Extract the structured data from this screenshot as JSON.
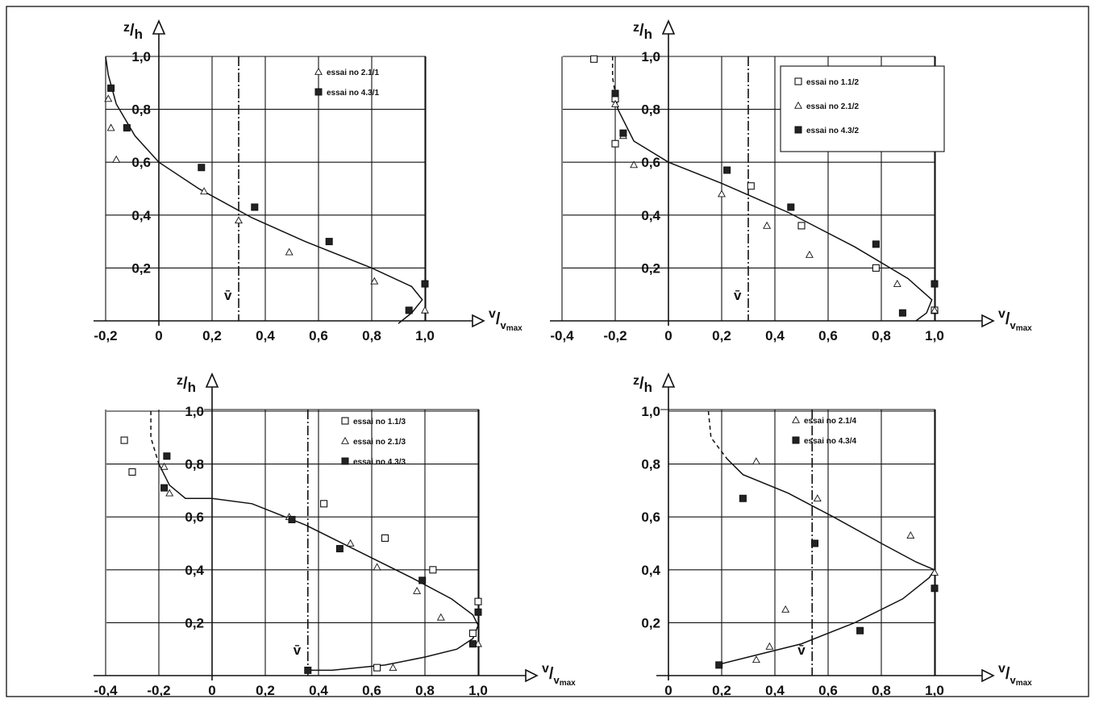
{
  "chart_data": [
    {
      "type": "scatter",
      "xlabel": "v/v_max",
      "ylabel": "z/h",
      "xlim": [
        -0.2,
        1.0
      ],
      "ylim": [
        0,
        1.0
      ],
      "x_ticks": [
        "-0,2",
        "0",
        "0,2",
        "0,4",
        "0,6",
        "0,8",
        "1,0"
      ],
      "y_ticks": [
        "0,2",
        "0,4",
        "0,6",
        "0,8",
        "1,0"
      ],
      "mean_label": "v̄",
      "mean_x": 0.3,
      "series": [
        {
          "name": "essai no 2.1/1",
          "marker": "triangle",
          "points": [
            [
              -0.19,
              0.84
            ],
            [
              -0.18,
              0.73
            ],
            [
              -0.16,
              0.61
            ],
            [
              0.17,
              0.49
            ],
            [
              0.3,
              0.38
            ],
            [
              0.49,
              0.26
            ],
            [
              0.81,
              0.15
            ],
            [
              1.0,
              0.04
            ]
          ]
        },
        {
          "name": "essai no 4.3/1",
          "marker": "filled-square",
          "points": [
            [
              -0.18,
              0.88
            ],
            [
              -0.12,
              0.73
            ],
            [
              0.16,
              0.58
            ],
            [
              0.36,
              0.43
            ],
            [
              0.64,
              0.3
            ],
            [
              0.94,
              0.04
            ],
            [
              1.0,
              0.14
            ]
          ]
        }
      ],
      "fit_curve": [
        [
          -0.2,
          1.0
        ],
        [
          -0.19,
          0.93
        ],
        [
          -0.16,
          0.82
        ],
        [
          -0.09,
          0.7
        ],
        [
          0.0,
          0.6
        ],
        [
          0.15,
          0.5
        ],
        [
          0.35,
          0.39
        ],
        [
          0.55,
          0.3
        ],
        [
          0.8,
          0.2
        ],
        [
          0.95,
          0.13
        ],
        [
          0.99,
          0.08
        ],
        [
          0.95,
          0.03
        ],
        [
          0.9,
          -0.01
        ]
      ],
      "fit_dashed": [],
      "legend": {
        "position": "top-right",
        "box": false
      }
    },
    {
      "type": "scatter",
      "xlabel": "v/v_max",
      "ylabel": "z/h",
      "xlim": [
        -0.4,
        1.0
      ],
      "ylim": [
        0,
        1.0
      ],
      "x_ticks": [
        "-0,4",
        "-0,2",
        "0",
        "0,2",
        "0,4",
        "0,6",
        "0,8",
        "1,0"
      ],
      "y_ticks": [
        "0,2",
        "0,4",
        "0,6",
        "0,8",
        "1,0"
      ],
      "mean_label": "v̄",
      "mean_x": 0.3,
      "series": [
        {
          "name": "essai no 1.1/2",
          "marker": "open-square",
          "points": [
            [
              -0.28,
              0.99
            ],
            [
              -0.2,
              0.84
            ],
            [
              -0.2,
              0.67
            ],
            [
              0.31,
              0.51
            ],
            [
              0.5,
              0.36
            ],
            [
              0.78,
              0.2
            ],
            [
              1.0,
              0.04
            ]
          ]
        },
        {
          "name": "essai no 2.1/2",
          "marker": "triangle",
          "points": [
            [
              -0.2,
              0.82
            ],
            [
              -0.17,
              0.7
            ],
            [
              -0.13,
              0.59
            ],
            [
              0.2,
              0.48
            ],
            [
              0.37,
              0.36
            ],
            [
              0.53,
              0.25
            ],
            [
              0.86,
              0.14
            ],
            [
              1.0,
              0.04
            ]
          ]
        },
        {
          "name": "essai no 4.3/2",
          "marker": "filled-square",
          "points": [
            [
              -0.2,
              0.86
            ],
            [
              -0.17,
              0.71
            ],
            [
              0.22,
              0.57
            ],
            [
              0.46,
              0.43
            ],
            [
              0.78,
              0.29
            ],
            [
              0.88,
              0.03
            ],
            [
              1.0,
              0.14
            ]
          ]
        }
      ],
      "fit_curve": [
        [
          -0.19,
          0.8
        ],
        [
          -0.13,
          0.68
        ],
        [
          0.0,
          0.6
        ],
        [
          0.2,
          0.52
        ],
        [
          0.45,
          0.41
        ],
        [
          0.7,
          0.28
        ],
        [
          0.9,
          0.16
        ],
        [
          0.99,
          0.08
        ],
        [
          0.97,
          0.03
        ],
        [
          0.93,
          0.0
        ]
      ],
      "fit_dashed": [
        [
          -0.21,
          1.0
        ],
        [
          -0.21,
          0.92
        ],
        [
          -0.19,
          0.8
        ]
      ],
      "legend": {
        "position": "top-right",
        "box": true
      }
    },
    {
      "type": "scatter",
      "xlabel": "v/v_max",
      "ylabel": "z/h",
      "xlim": [
        -0.4,
        1.0
      ],
      "ylim": [
        0,
        1.0
      ],
      "x_ticks": [
        "-0,4",
        "-0,2",
        "0",
        "0,2",
        "0,4",
        "0,6",
        "0,8",
        "1,0"
      ],
      "y_ticks": [
        "0,2",
        "0,4",
        "0,6",
        "0,8",
        "1,0"
      ],
      "mean_label": "v̄",
      "mean_x": 0.36,
      "series": [
        {
          "name": "essai no 1.1/3",
          "marker": "open-square",
          "points": [
            [
              -0.33,
              0.89
            ],
            [
              -0.3,
              0.77
            ],
            [
              0.42,
              0.65
            ],
            [
              0.65,
              0.52
            ],
            [
              0.83,
              0.4
            ],
            [
              1.0,
              0.28
            ],
            [
              0.98,
              0.16
            ],
            [
              0.62,
              0.03
            ]
          ]
        },
        {
          "name": "essai no 2.1/3",
          "marker": "triangle",
          "points": [
            [
              -0.18,
              0.79
            ],
            [
              -0.16,
              0.69
            ],
            [
              0.29,
              0.6
            ],
            [
              0.52,
              0.5
            ],
            [
              0.62,
              0.41
            ],
            [
              0.77,
              0.32
            ],
            [
              0.86,
              0.22
            ],
            [
              1.0,
              0.12
            ],
            [
              0.68,
              0.03
            ]
          ]
        },
        {
          "name": "essai no 4.3/3",
          "marker": "filled-square",
          "points": [
            [
              -0.17,
              0.83
            ],
            [
              -0.18,
              0.71
            ],
            [
              0.3,
              0.59
            ],
            [
              0.48,
              0.48
            ],
            [
              0.79,
              0.36
            ],
            [
              1.0,
              0.24
            ],
            [
              0.98,
              0.12
            ],
            [
              0.36,
              0.02
            ]
          ]
        }
      ],
      "fit_curve": [
        [
          -0.2,
          0.8
        ],
        [
          -0.16,
          0.72
        ],
        [
          -0.1,
          0.67
        ],
        [
          0.0,
          0.67
        ],
        [
          0.15,
          0.65
        ],
        [
          0.35,
          0.57
        ],
        [
          0.55,
          0.47
        ],
        [
          0.75,
          0.37
        ],
        [
          0.9,
          0.29
        ],
        [
          0.98,
          0.23
        ],
        [
          1.0,
          0.19
        ],
        [
          0.98,
          0.14
        ],
        [
          0.92,
          0.1
        ],
        [
          0.8,
          0.07
        ],
        [
          0.65,
          0.04
        ],
        [
          0.45,
          0.02
        ],
        [
          0.36,
          0.02
        ]
      ],
      "fit_dashed": [
        [
          -0.23,
          1.0
        ],
        [
          -0.23,
          0.9
        ],
        [
          -0.2,
          0.8
        ]
      ],
      "legend": {
        "position": "top-right",
        "box": false
      }
    },
    {
      "type": "scatter",
      "xlabel": "v/v_max",
      "ylabel": "z/h",
      "xlim": [
        0,
        1.0
      ],
      "ylim": [
        0,
        1.0
      ],
      "x_ticks": [
        "0",
        "0,2",
        "0,4",
        "0,6",
        "0,8",
        "1,0"
      ],
      "y_ticks": [
        "0,2",
        "0,4",
        "0,6",
        "0,8",
        "1,0"
      ],
      "mean_label": "v̄",
      "mean_x": 0.54,
      "series": [
        {
          "name": "essai no 2.1/4",
          "marker": "triangle",
          "points": [
            [
              0.33,
              0.81
            ],
            [
              0.56,
              0.67
            ],
            [
              0.91,
              0.53
            ],
            [
              0.44,
              0.25
            ],
            [
              0.38,
              0.11
            ],
            [
              0.33,
              0.06
            ],
            [
              1.0,
              0.39
            ]
          ]
        },
        {
          "name": "essai no 4.3/4",
          "marker": "filled-square",
          "points": [
            [
              0.28,
              0.67
            ],
            [
              0.55,
              0.5
            ],
            [
              1.0,
              0.33
            ],
            [
              0.72,
              0.17
            ],
            [
              0.19,
              0.04
            ]
          ]
        }
      ],
      "fit_curve": [
        [
          0.22,
          0.82
        ],
        [
          0.28,
          0.76
        ],
        [
          0.45,
          0.69
        ],
        [
          0.62,
          0.6
        ],
        [
          0.8,
          0.5
        ],
        [
          0.93,
          0.43
        ],
        [
          1.0,
          0.4
        ],
        [
          0.98,
          0.37
        ],
        [
          0.88,
          0.29
        ],
        [
          0.7,
          0.2
        ],
        [
          0.5,
          0.12
        ],
        [
          0.3,
          0.07
        ],
        [
          0.18,
          0.04
        ]
      ],
      "fit_dashed": [
        [
          0.15,
          1.0
        ],
        [
          0.16,
          0.9
        ],
        [
          0.22,
          0.82
        ]
      ],
      "legend": {
        "position": "top-right",
        "box": false
      }
    }
  ]
}
